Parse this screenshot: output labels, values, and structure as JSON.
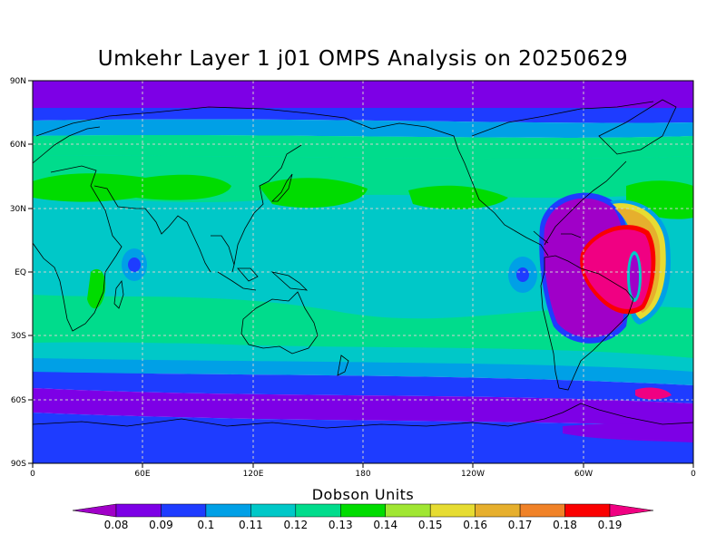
{
  "title": "Umkehr Layer 1 j01 OMPS Analysis on 20250629",
  "units_label": "Dobson Units",
  "chart_data": {
    "type": "heatmap",
    "title": "Umkehr Layer 1 j01 OMPS Analysis on 20250629",
    "y_ticks": [
      "90N",
      "60N",
      "30N",
      "EQ",
      "30S",
      "60S",
      "90S"
    ],
    "x_ticks": [
      "0",
      "60E",
      "120E",
      "180",
      "120W",
      "60W",
      "0"
    ],
    "colorbar_values": [
      "0.08",
      "0.09",
      "0.1",
      "0.11",
      "0.12",
      "0.13",
      "0.14",
      "0.15",
      "0.16",
      "0.17",
      "0.18",
      "0.19"
    ],
    "colorbar_colors": [
      "#a000c8",
      "#7d00e6",
      "#1e3cff",
      "#00a0e6",
      "#00c8c8",
      "#00dc8c",
      "#00dc00",
      "#a0e632",
      "#e6dc32",
      "#e6af2d",
      "#f08228",
      "#fa0000",
      "#f00082"
    ],
    "grid": true
  }
}
